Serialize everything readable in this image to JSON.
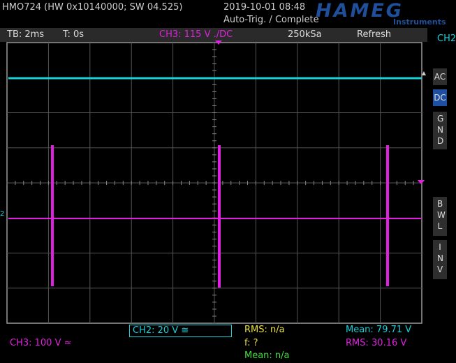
{
  "header": {
    "device": "HMO724 (HW 0x10140000; SW 04.525)",
    "datetime": "2019-10-01 08:48",
    "trigger_status": "Auto-Trig. / Complete",
    "logo": "HAMEG",
    "logo_sub": "Instruments"
  },
  "status_bar": {
    "timebase": "TB: 2ms",
    "trigger_time": "T: 0s",
    "trigger_source": "CH3: 115 V ./DC",
    "sample_rate": "250kSa",
    "mode": "Refresh"
  },
  "side_menu": {
    "channel": "CH2",
    "buttons": [
      "AC",
      "DC",
      "GND",
      "BWL",
      "INV"
    ]
  },
  "bottom": {
    "ch2_scale": "CH2: 20 V ≅",
    "ch3_scale": "CH3: 100 V ≈",
    "rms_a": "RMS: n/a",
    "freq": "f: ?",
    "mean_a": "Mean: n/a",
    "mean": "Mean: 79.71 V",
    "rms": "RMS: 30.16 V"
  }
}
